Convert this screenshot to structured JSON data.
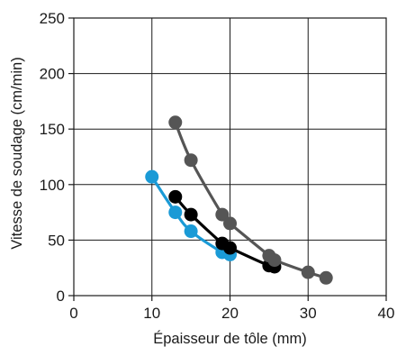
{
  "chart_data": {
    "type": "line",
    "xlabel": "Épaisseur de tôle (mm)",
    "ylabel": "Vitesse de soudage (cm/min)",
    "xlim": [
      0,
      40
    ],
    "ylim": [
      0,
      250
    ],
    "xticks": [
      0,
      10,
      20,
      30,
      40
    ],
    "yticks": [
      0,
      50,
      100,
      150,
      200,
      250
    ],
    "grid": true,
    "series": [
      {
        "color": "#1a9ad6",
        "points": [
          [
            10,
            107
          ],
          [
            13,
            75
          ],
          [
            15,
            58
          ],
          [
            19,
            39
          ],
          [
            20,
            37
          ]
        ]
      },
      {
        "color": "#000000",
        "points": [
          [
            13,
            89
          ],
          [
            15,
            73
          ],
          [
            19,
            47
          ],
          [
            20,
            43
          ],
          [
            25,
            27
          ],
          [
            25.7,
            26
          ]
        ]
      },
      {
        "color": "#555555",
        "points": [
          [
            13,
            156
          ],
          [
            15,
            122
          ],
          [
            19,
            73
          ],
          [
            20,
            65
          ],
          [
            25,
            36
          ],
          [
            25.7,
            32
          ],
          [
            30,
            21
          ],
          [
            32.3,
            16
          ]
        ]
      }
    ]
  }
}
